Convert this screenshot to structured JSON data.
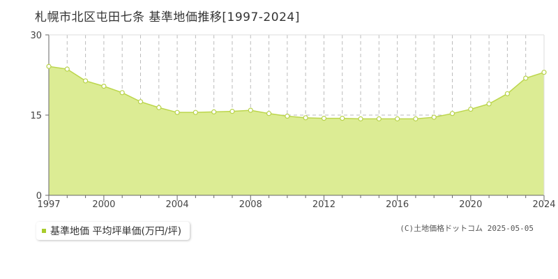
{
  "title": "札幌市北区屯田七条 基準地価推移[1997-2024]",
  "legend": {
    "label": "基準地価 平均坪単価(万円/坪)"
  },
  "copyright": "(C)土地価格ドットコム 2025-05-05",
  "colors": {
    "fill": "#dcec94",
    "line": "#bcd64c",
    "point_stroke": "#b8d24a",
    "grid": "#bbbbbb",
    "axis": "#666666",
    "legend_marker": "#a8cc2c"
  },
  "chart_data": {
    "type": "area",
    "title": "札幌市北区屯田七条 基準地価推移[1997-2024]",
    "xlabel": "",
    "ylabel": "",
    "x": [
      1997,
      1998,
      1999,
      2000,
      2001,
      2002,
      2003,
      2004,
      2005,
      2006,
      2007,
      2008,
      2009,
      2010,
      2011,
      2012,
      2013,
      2014,
      2015,
      2016,
      2017,
      2018,
      2019,
      2020,
      2021,
      2022,
      2023,
      2024
    ],
    "series": [
      {
        "name": "基準地価 平均坪単価(万円/坪)",
        "values": [
          24.1,
          23.6,
          21.4,
          20.4,
          19.2,
          17.5,
          16.4,
          15.5,
          15.5,
          15.6,
          15.7,
          15.9,
          15.3,
          14.8,
          14.5,
          14.4,
          14.4,
          14.3,
          14.3,
          14.3,
          14.3,
          14.6,
          15.3,
          16.1,
          17.1,
          19.0,
          21.9,
          23.0
        ]
      }
    ],
    "ylim": [
      0,
      30
    ],
    "yticks": [
      0,
      15,
      30
    ],
    "xticks": [
      1997,
      2000,
      2004,
      2008,
      2012,
      2016,
      2020,
      2024
    ],
    "grid": true,
    "legend_position": "bottom-left"
  }
}
